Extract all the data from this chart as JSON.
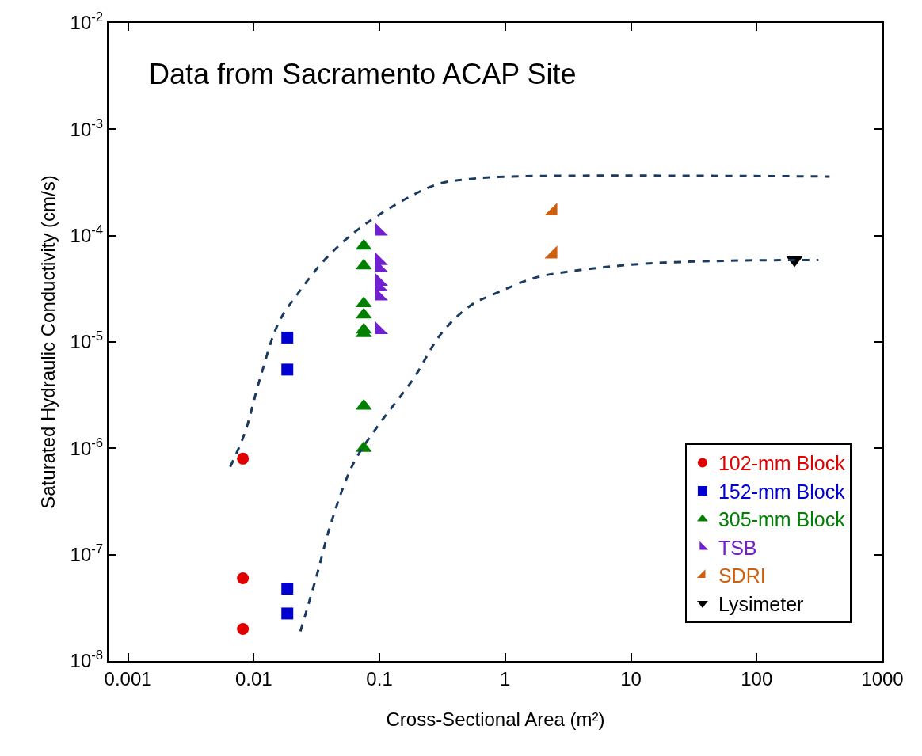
{
  "chart_data": {
    "type": "scatter",
    "annotations": [
      "Data from Sacramento ACAP Site"
    ],
    "xlabel": "Cross-Sectional Area (m²)",
    "ylabel": "Saturated Hydraulic Conductivity (cm/s)",
    "log": "xy",
    "legend": "bottom right",
    "xlim": [
      0.0007,
      1000
    ],
    "xticks": [
      0.001,
      0.01,
      0.1,
      1,
      10,
      100,
      1000
    ],
    "ylim": [
      1e-08,
      0.01
    ],
    "yticks": [
      {
        "value": 1e-08,
        "label": "10$^{-8}$"
      },
      {
        "value": 1e-07,
        "label": "10$^{-7}$"
      },
      {
        "value": 1e-06,
        "label": "10$^{-6}$"
      },
      {
        "value": 1e-05,
        "label": "10$^{-5}$"
      },
      {
        "value": 0.0001,
        "label": "10$^{-4}$"
      },
      {
        "value": 0.001,
        "label": "10$^{-3}$"
      },
      {
        "value": 0.01,
        "label": "10$^{-2}$"
      }
    ],
    "series": [
      {
        "name": "102-mm Block",
        "color": "#e00000",
        "marker": "circle",
        "x": [
          0.0082,
          0.0082,
          0.0082
        ],
        "values": [
          8e-07,
          6e-08,
          2e-08
        ]
      },
      {
        "name": "152-mm Block",
        "color": "#0000d0",
        "marker": "square",
        "x": [
          0.0185,
          0.0185,
          0.0185,
          0.0185
        ],
        "values": [
          1.1e-05,
          5.5e-06,
          4.8e-08,
          2.8e-08
        ]
      },
      {
        "name": "305-mm Block",
        "color": "#008000",
        "marker": "triangle",
        "x": [
          0.075,
          0.075,
          0.075,
          0.075,
          0.075,
          0.075,
          0.075,
          0.075
        ],
        "values": [
          8e-05,
          5.2e-05,
          2.3e-05,
          1.8e-05,
          1.3e-05,
          1.2e-05,
          2.5e-06,
          1e-06
        ]
      },
      {
        "name": "TSB",
        "color": "#7020d0",
        "marker": "triangle-sw",
        "x": [
          0.1,
          0.1,
          0.1,
          0.1,
          0.1,
          0.1,
          0.1
        ],
        "values": [
          0.00011,
          5.8e-05,
          5e-05,
          3.7e-05,
          3.3e-05,
          2.7e-05,
          1.3e-05
        ]
      },
      {
        "name": "SDRI",
        "color": "#cc6010",
        "marker": "triangle-se",
        "x": [
          2.4,
          2.4
        ],
        "values": [
          0.00017,
          6.7e-05
        ]
      },
      {
        "name": "Lysimeter",
        "color": "#000000",
        "marker": "triangle-down",
        "x": [
          200
        ],
        "values": [
          5.9e-05
        ]
      },
      {
        "type": "line",
        "color": "#1a3a5f",
        "line_style": "dashed",
        "marker": "none",
        "x": [
          0.0065,
          0.0085,
          0.0112,
          0.0157,
          0.0222,
          0.0385,
          0.082,
          0.28,
          0.52,
          1.12,
          380
        ],
        "values": [
          6.7e-07,
          1.4e-06,
          4.5e-06,
          1.5e-05,
          2.8e-05,
          6.3e-05,
          0.000135,
          0.0003,
          0.00034,
          0.00036,
          0.00036
        ]
      },
      {
        "type": "line",
        "color": "#1a3a5f",
        "line_style": "dashed",
        "marker": "none",
        "x": [
          0.0235,
          0.0314,
          0.0413,
          0.062,
          0.1,
          0.186,
          0.31,
          0.53,
          0.86,
          1.71,
          3.2,
          11.6,
          54,
          310
        ],
        "values": [
          1.9e-08,
          6.1e-08,
          2e-07,
          7.2e-07,
          1.7e-06,
          4.5e-06,
          1.2e-05,
          2.2e-05,
          2.9e-05,
          4e-05,
          4.6e-05,
          5.4e-05,
          5.8e-05,
          5.9e-05
        ]
      }
    ]
  }
}
